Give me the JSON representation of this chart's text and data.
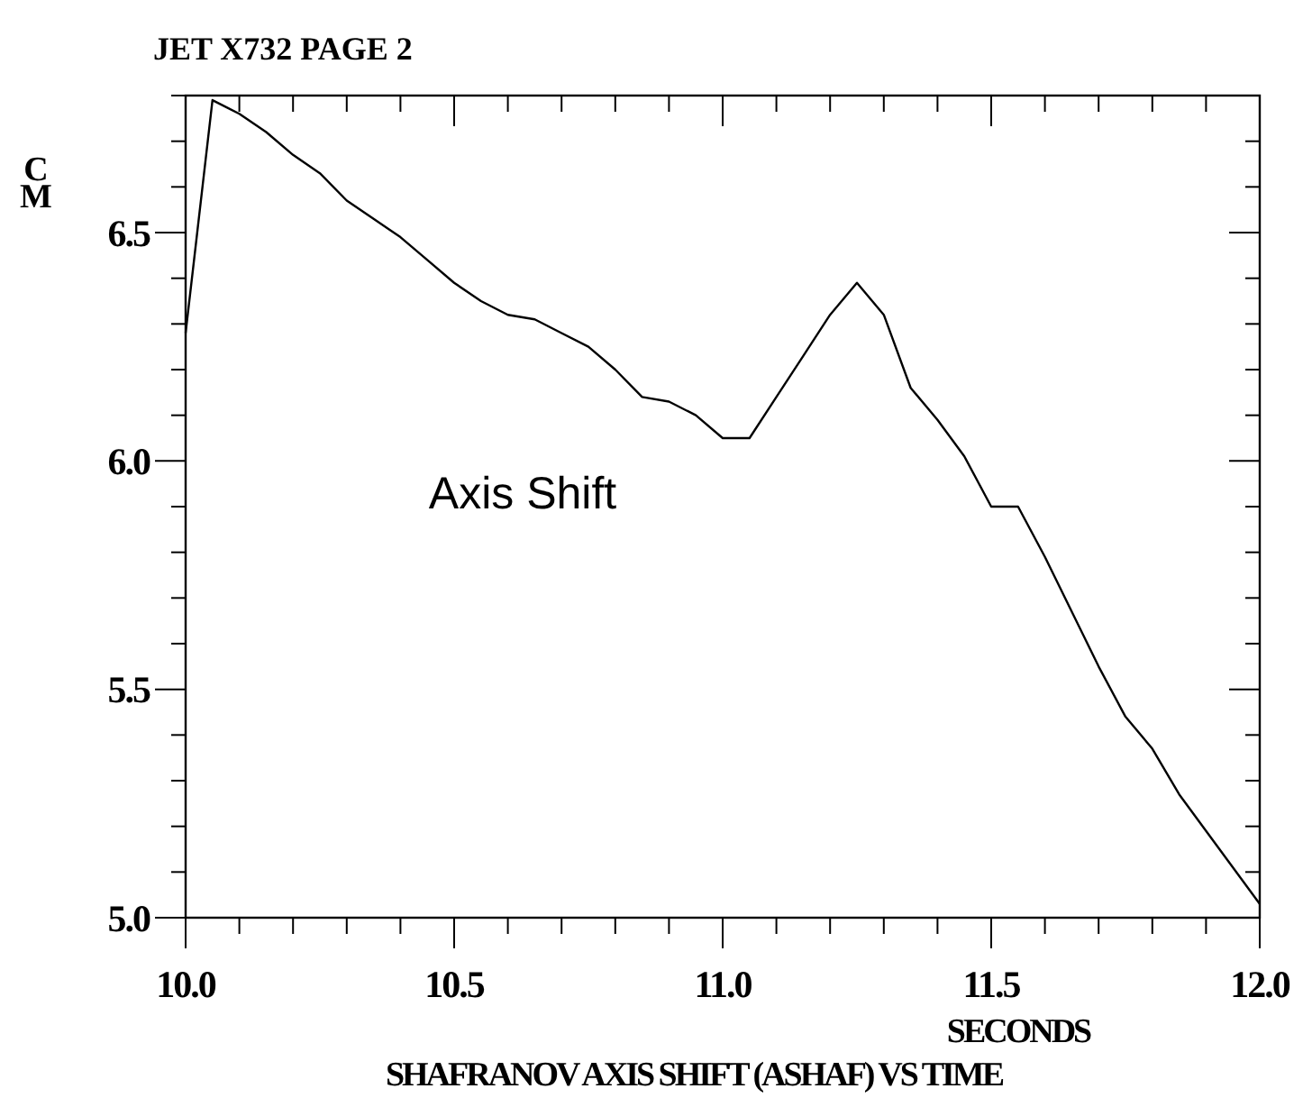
{
  "chart_data": {
    "type": "line",
    "title": "JET X732 PAGE 2",
    "xlabel": "SECONDS",
    "ylabel": "CM",
    "annotations": [
      "Axis Shift",
      "SHAFRANOV AXIS SHIFT (ASHAF) VS TIME"
    ],
    "x": [
      10.0,
      10.05,
      10.1,
      10.15,
      10.2,
      10.25,
      10.3,
      10.35,
      10.4,
      10.45,
      10.5,
      10.55,
      10.6,
      10.65,
      10.7,
      10.75,
      10.8,
      10.85,
      10.9,
      10.95,
      11.0,
      11.05,
      11.1,
      11.15,
      11.2,
      11.25,
      11.3,
      11.35,
      11.4,
      11.45,
      11.5,
      11.55,
      11.6,
      11.65,
      11.7,
      11.75,
      11.8,
      11.85,
      11.9,
      11.95,
      12.0
    ],
    "series": [
      {
        "color": "#000000",
        "values": [
          6.28,
          6.79,
          6.76,
          6.72,
          6.67,
          6.63,
          6.57,
          6.53,
          6.49,
          6.44,
          6.39,
          6.35,
          6.32,
          6.31,
          6.28,
          6.25,
          6.2,
          6.14,
          6.13,
          6.1,
          6.05,
          6.05,
          6.14,
          6.23,
          6.32,
          6.39,
          6.32,
          6.16,
          6.09,
          6.01,
          5.9,
          5.9,
          5.79,
          5.67,
          5.55,
          5.44,
          5.37,
          5.27,
          5.19,
          5.11,
          5.03
        ]
      }
    ],
    "xlim": [
      10.0,
      12.0
    ],
    "ylim": [
      5.0,
      6.8
    ],
    "xticks": [
      {
        "value": 10.0,
        "label": "10.0"
      },
      {
        "value": 10.1,
        "label": null
      },
      {
        "value": 10.2,
        "label": null
      },
      {
        "value": 10.3,
        "label": null
      },
      {
        "value": 10.4,
        "label": null
      },
      {
        "value": 10.5,
        "label": "10.5"
      },
      {
        "value": 10.6,
        "label": null
      },
      {
        "value": 10.7,
        "label": null
      },
      {
        "value": 10.8,
        "label": null
      },
      {
        "value": 10.9,
        "label": null
      },
      {
        "value": 11.0,
        "label": "11.0"
      },
      {
        "value": 11.1,
        "label": null
      },
      {
        "value": 11.2,
        "label": null
      },
      {
        "value": 11.3,
        "label": null
      },
      {
        "value": 11.4,
        "label": null
      },
      {
        "value": 11.5,
        "label": "11.5"
      },
      {
        "value": 11.6,
        "label": null
      },
      {
        "value": 11.7,
        "label": null
      },
      {
        "value": 11.8,
        "label": null
      },
      {
        "value": 11.9,
        "label": null
      },
      {
        "value": 12.0,
        "label": "12.0"
      }
    ],
    "yticks": [
      {
        "value": 5.0,
        "label": "5.0"
      },
      {
        "value": 5.1,
        "label": null
      },
      {
        "value": 5.2,
        "label": null
      },
      {
        "value": 5.3,
        "label": null
      },
      {
        "value": 5.4,
        "label": null
      },
      {
        "value": 5.5,
        "label": "5.5"
      },
      {
        "value": 5.6,
        "label": null
      },
      {
        "value": 5.7,
        "label": null
      },
      {
        "value": 5.8,
        "label": null
      },
      {
        "value": 5.9,
        "label": null
      },
      {
        "value": 6.0,
        "label": "6.0"
      },
      {
        "value": 6.1,
        "label": null
      },
      {
        "value": 6.2,
        "label": null
      },
      {
        "value": 6.3,
        "label": null
      },
      {
        "value": 6.4,
        "label": null
      },
      {
        "value": 6.5,
        "label": "6.5"
      },
      {
        "value": 6.6,
        "label": null
      },
      {
        "value": 6.7,
        "label": null
      },
      {
        "value": 6.8,
        "label": null
      }
    ],
    "grid": false,
    "marker": "none",
    "line_style": "solid"
  }
}
